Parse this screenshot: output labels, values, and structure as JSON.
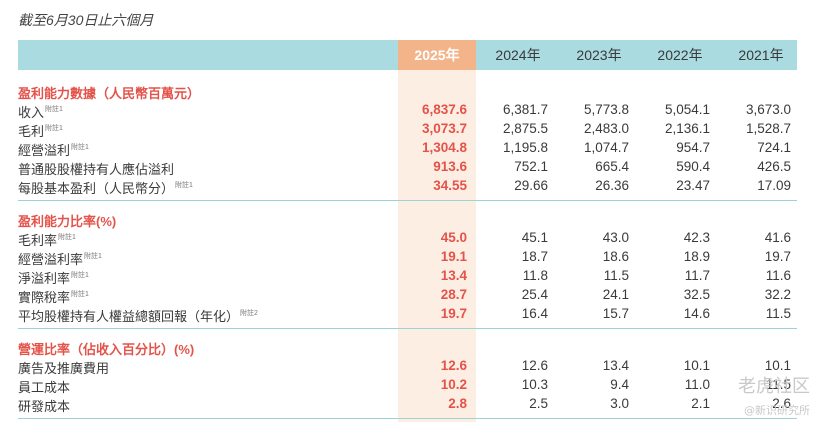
{
  "subtitle": "截至6月30日止六個月",
  "years": [
    "2025年",
    "2024年",
    "2023年",
    "2022年",
    "2021年"
  ],
  "sections": [
    {
      "title": "盈利能力數據（人民幣百萬元）",
      "rows": [
        {
          "label": "收入",
          "note": "附註1",
          "values": [
            "6,837.6",
            "6,381.7",
            "5,773.8",
            "5,054.1",
            "3,673.0"
          ]
        },
        {
          "label": "毛利",
          "note": "附註1",
          "values": [
            "3,073.7",
            "2,875.5",
            "2,483.0",
            "2,136.1",
            "1,528.7"
          ]
        },
        {
          "label": "經營溢利",
          "note": "附註1",
          "values": [
            "1,304.8",
            "1,195.8",
            "1,074.7",
            "954.7",
            "724.1"
          ]
        },
        {
          "label": "普通股股權持有人應佔溢利",
          "note": "",
          "values": [
            "913.6",
            "752.1",
            "665.4",
            "590.4",
            "426.5"
          ]
        },
        {
          "label": "每股基本盈利（人民幣分）",
          "note": "附註1",
          "values": [
            "34.55",
            "29.66",
            "26.36",
            "23.47",
            "17.09"
          ]
        }
      ]
    },
    {
      "title": "盈利能力比率(%)",
      "rows": [
        {
          "label": "毛利率",
          "note": "附註1",
          "values": [
            "45.0",
            "45.1",
            "43.0",
            "42.3",
            "41.6"
          ]
        },
        {
          "label": "經營溢利率",
          "note": "附註1",
          "values": [
            "19.1",
            "18.7",
            "18.6",
            "18.9",
            "19.7"
          ]
        },
        {
          "label": "淨溢利率",
          "note": "附註1",
          "values": [
            "13.4",
            "11.8",
            "11.5",
            "11.7",
            "11.6"
          ]
        },
        {
          "label": "實際稅率",
          "note": "附註1",
          "values": [
            "28.7",
            "25.4",
            "24.1",
            "32.5",
            "32.2"
          ]
        },
        {
          "label": "平均股權持有人權益總額回報（年化）",
          "note": "附註2",
          "values": [
            "19.7",
            "16.4",
            "15.7",
            "14.6",
            "11.5"
          ]
        }
      ]
    },
    {
      "title": "營運比率（佔收入百分比）(%)",
      "rows": [
        {
          "label": "廣告及推廣費用",
          "note": "",
          "values": [
            "12.6",
            "12.6",
            "13.4",
            "10.1",
            "10.1"
          ]
        },
        {
          "label": "員工成本",
          "note": "",
          "values": [
            "10.2",
            "10.3",
            "9.4",
            "11.0",
            "11.5"
          ]
        },
        {
          "label": "研發成本",
          "note": "",
          "values": [
            "2.8",
            "2.5",
            "3.0",
            "2.1",
            "2.6"
          ]
        }
      ]
    }
  ],
  "watermark": {
    "line1": "老虎社区",
    "line2": "@新识研究所"
  },
  "colors": {
    "header_bg": "#a9dbe0",
    "highlight_header": "#f4b489",
    "highlight_col": "#fdeee3",
    "accent_red": "#e4534a"
  }
}
